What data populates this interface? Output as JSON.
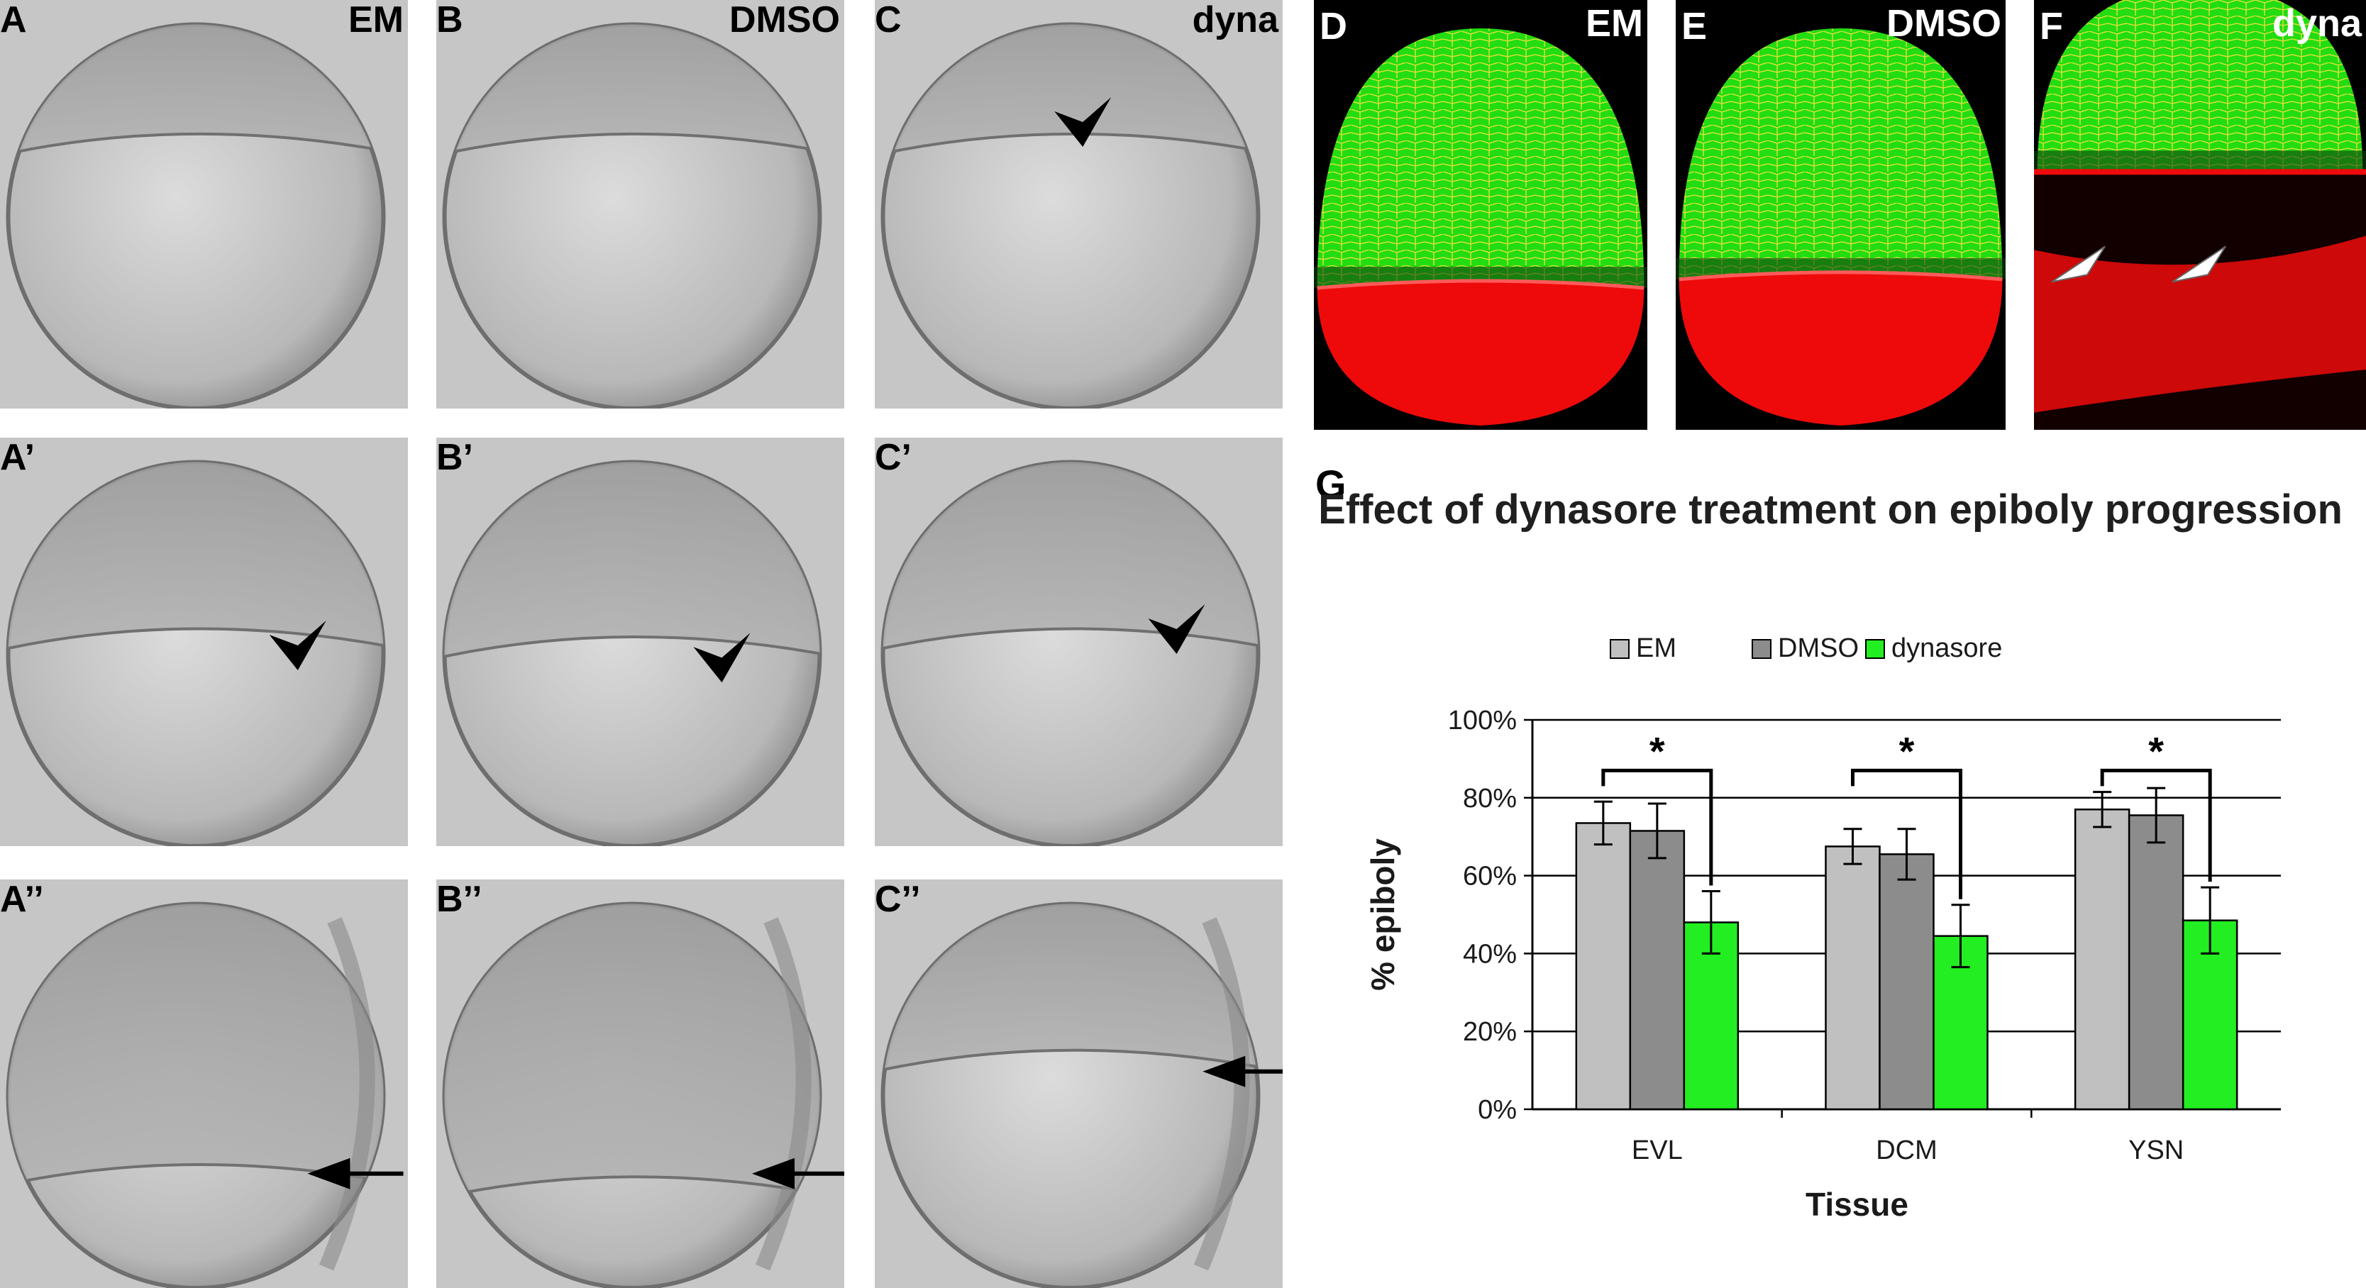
{
  "panels": {
    "dic": [
      {
        "id": "A",
        "label": "A",
        "condition": "EM",
        "marker": "none"
      },
      {
        "id": "B",
        "label": "B",
        "condition": "DMSO",
        "marker": "none"
      },
      {
        "id": "C",
        "label": "C",
        "condition": "dyna",
        "marker": "arrowhead"
      },
      {
        "id": "A1",
        "label": "A’",
        "condition": "",
        "marker": "arrowhead"
      },
      {
        "id": "B1",
        "label": "B’",
        "condition": "",
        "marker": "arrowhead"
      },
      {
        "id": "C1",
        "label": "C’",
        "condition": "",
        "marker": "arrowhead"
      },
      {
        "id": "A2",
        "label": "A’’",
        "condition": "",
        "marker": "arrow"
      },
      {
        "id": "B2",
        "label": "B’’",
        "condition": "",
        "marker": "arrow"
      },
      {
        "id": "C2",
        "label": "C’’",
        "condition": "",
        "marker": "arrow"
      }
    ],
    "confocal": [
      {
        "id": "D",
        "label": "D",
        "condition": "EM"
      },
      {
        "id": "E",
        "label": "E",
        "condition": "DMSO"
      },
      {
        "id": "F",
        "label": "F",
        "condition": "dyna"
      }
    ],
    "chart_label": "G"
  },
  "colors": {
    "em": "#c0c0c0",
    "dmso": "#8c8c8c",
    "dynasore": "#22ee22",
    "confocal_green": "#22dd11",
    "confocal_red": "#ee0a0a"
  },
  "chart_data": {
    "type": "bar",
    "title": "Effect of dynasore treatment on epiboly progression",
    "xlabel": "Tissue",
    "ylabel": "% epiboly",
    "categories": [
      "EVL",
      "DCM",
      "YSN"
    ],
    "series": [
      {
        "name": "EM",
        "values": [
          73.5,
          67.5,
          77.0
        ],
        "errors": [
          5.5,
          4.5,
          4.5
        ]
      },
      {
        "name": "DMSO",
        "values": [
          71.5,
          65.5,
          75.5
        ],
        "errors": [
          7.0,
          6.5,
          7.0
        ]
      },
      {
        "name": "dynasore",
        "values": [
          48.0,
          44.5,
          48.5
        ],
        "errors": [
          8.0,
          8.0,
          8.5
        ]
      }
    ],
    "ylim": [
      0,
      100
    ],
    "yticks": [
      "0%",
      "20%",
      "40%",
      "60%",
      "80%",
      "100%"
    ],
    "ytick_values": [
      0,
      20,
      40,
      60,
      80,
      100
    ],
    "significance": [
      "*",
      "*",
      "*"
    ],
    "grid": true,
    "legend_position": "top"
  }
}
